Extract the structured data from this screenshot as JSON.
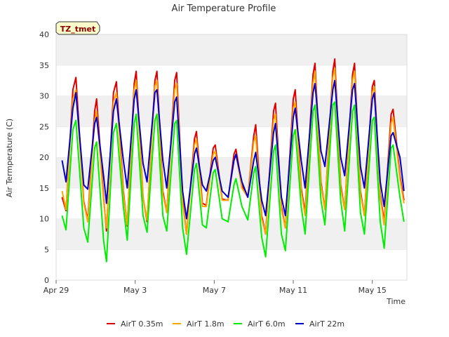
{
  "chart_data": {
    "type": "line",
    "title": "Air Temperature Profile",
    "xlabel": "Time",
    "ylabel": "Air Termperature (C)",
    "badge": "TZ_tmet",
    "ylim": [
      0,
      40
    ],
    "yticks": [
      0,
      5,
      10,
      15,
      20,
      25,
      30,
      35,
      40
    ],
    "xlim": [
      "Apr 29",
      "May 17 06:00"
    ],
    "xticks": [
      {
        "label": "Apr 29",
        "x": 0
      },
      {
        "label": "May 3",
        "x": 4
      },
      {
        "label": "May 7",
        "x": 8
      },
      {
        "label": "May 11",
        "x": 12
      },
      {
        "label": "May 15",
        "x": 16
      }
    ],
    "grid": "horizontal bands",
    "legend_position": "bottom",
    "x_units": "days since Apr 29 00:00",
    "series": [
      {
        "name": "AirT 0.35m",
        "color": "#dd0000",
        "points": [
          [
            0.3,
            13.5
          ],
          [
            0.5,
            11.3
          ],
          [
            0.85,
            31
          ],
          [
            1.0,
            33.0
          ],
          [
            1.4,
            12.8
          ],
          [
            1.6,
            9.8
          ],
          [
            1.95,
            27.5
          ],
          [
            2.05,
            29.5
          ],
          [
            2.4,
            13.5
          ],
          [
            2.55,
            8.0
          ],
          [
            2.9,
            30.5
          ],
          [
            3.05,
            32.3
          ],
          [
            3.4,
            14.5
          ],
          [
            3.6,
            8.8
          ],
          [
            3.95,
            32.0
          ],
          [
            4.05,
            34.0
          ],
          [
            4.4,
            13.5
          ],
          [
            4.6,
            9.5
          ],
          [
            5.0,
            32.5
          ],
          [
            5.1,
            34.0
          ],
          [
            5.4,
            14.5
          ],
          [
            5.6,
            11.0
          ],
          [
            6.0,
            32.5
          ],
          [
            6.1,
            33.8
          ],
          [
            6.4,
            13.0
          ],
          [
            6.6,
            7.5
          ],
          [
            7.0,
            23.0
          ],
          [
            7.1,
            24.2
          ],
          [
            7.4,
            12.5
          ],
          [
            7.6,
            12.2
          ],
          [
            7.95,
            21.5
          ],
          [
            8.05,
            22.0
          ],
          [
            8.4,
            13.2
          ],
          [
            8.7,
            13.0
          ],
          [
            9.0,
            20.5
          ],
          [
            9.1,
            21.3
          ],
          [
            9.4,
            15.5
          ],
          [
            9.7,
            13.5
          ],
          [
            10.0,
            23.5
          ],
          [
            10.1,
            25.3
          ],
          [
            10.4,
            10.5
          ],
          [
            10.6,
            7.5
          ],
          [
            11.0,
            27.5
          ],
          [
            11.1,
            28.8
          ],
          [
            11.4,
            12.0
          ],
          [
            11.6,
            8.5
          ],
          [
            12.0,
            29.5
          ],
          [
            12.1,
            31.0
          ],
          [
            12.4,
            15.0
          ],
          [
            12.6,
            11.0
          ],
          [
            13.0,
            33.5
          ],
          [
            13.1,
            35.3
          ],
          [
            13.4,
            16.0
          ],
          [
            13.6,
            11.5
          ],
          [
            14.0,
            34.0
          ],
          [
            14.1,
            36.0
          ],
          [
            14.4,
            15.5
          ],
          [
            14.6,
            11.5
          ],
          [
            15.0,
            33.5
          ],
          [
            15.1,
            35.3
          ],
          [
            15.4,
            14.5
          ],
          [
            15.6,
            10.5
          ],
          [
            16.0,
            31.5
          ],
          [
            16.1,
            32.5
          ],
          [
            16.4,
            14.0
          ],
          [
            16.6,
            9.5
          ],
          [
            16.95,
            27.0
          ],
          [
            17.05,
            27.8
          ],
          [
            17.4,
            17.0
          ],
          [
            17.6,
            13.0
          ]
        ]
      },
      {
        "name": "AirT 1.8m",
        "color": "#ffa500",
        "points": [
          [
            0.3,
            14.5
          ],
          [
            0.5,
            11.5
          ],
          [
            0.85,
            29.5
          ],
          [
            1.0,
            31.0
          ],
          [
            1.4,
            12.5
          ],
          [
            1.6,
            9.5
          ],
          [
            1.95,
            26.0
          ],
          [
            2.05,
            27.5
          ],
          [
            2.4,
            13.0
          ],
          [
            2.55,
            8.5
          ],
          [
            2.9,
            29.0
          ],
          [
            3.05,
            30.5
          ],
          [
            3.4,
            14.0
          ],
          [
            3.6,
            9.0
          ],
          [
            3.95,
            31.0
          ],
          [
            4.05,
            32.5
          ],
          [
            4.4,
            13.5
          ],
          [
            4.6,
            9.8
          ],
          [
            5.0,
            31.5
          ],
          [
            5.1,
            32.5
          ],
          [
            5.4,
            14.0
          ],
          [
            5.6,
            11.0
          ],
          [
            6.0,
            31.0
          ],
          [
            6.1,
            32.0
          ],
          [
            6.4,
            12.5
          ],
          [
            6.6,
            7.5
          ],
          [
            7.0,
            22.0
          ],
          [
            7.1,
            23.0
          ],
          [
            7.4,
            12.0
          ],
          [
            7.6,
            12.0
          ],
          [
            7.95,
            20.5
          ],
          [
            8.05,
            21.0
          ],
          [
            8.4,
            13.0
          ],
          [
            8.7,
            13.0
          ],
          [
            9.0,
            19.5
          ],
          [
            9.1,
            20.5
          ],
          [
            9.4,
            15.0
          ],
          [
            9.7,
            13.5
          ],
          [
            10.0,
            22.5
          ],
          [
            10.1,
            23.5
          ],
          [
            10.4,
            10.0
          ],
          [
            10.6,
            7.5
          ],
          [
            11.0,
            26.0
          ],
          [
            11.1,
            27.0
          ],
          [
            11.4,
            11.5
          ],
          [
            11.6,
            8.5
          ],
          [
            12.0,
            28.0
          ],
          [
            12.1,
            29.0
          ],
          [
            12.4,
            14.5
          ],
          [
            12.6,
            10.5
          ],
          [
            13.0,
            32.0
          ],
          [
            13.1,
            34.0
          ],
          [
            13.4,
            15.5
          ],
          [
            13.6,
            11.5
          ],
          [
            14.0,
            33.0
          ],
          [
            14.1,
            34.5
          ],
          [
            14.4,
            15.0
          ],
          [
            14.6,
            11.5
          ],
          [
            15.0,
            32.5
          ],
          [
            15.1,
            34.0
          ],
          [
            15.4,
            14.0
          ],
          [
            15.6,
            10.5
          ],
          [
            16.0,
            30.5
          ],
          [
            16.1,
            31.5
          ],
          [
            16.4,
            13.5
          ],
          [
            16.6,
            9.0
          ],
          [
            16.95,
            25.5
          ],
          [
            17.05,
            26.5
          ],
          [
            17.4,
            16.5
          ],
          [
            17.6,
            12.5
          ]
        ]
      },
      {
        "name": "AirT 6.0m",
        "color": "#00ee00",
        "points": [
          [
            0.3,
            10.5
          ],
          [
            0.5,
            8.2
          ],
          [
            0.85,
            24.5
          ],
          [
            1.0,
            26.0
          ],
          [
            1.4,
            8.5
          ],
          [
            1.6,
            6.2
          ],
          [
            1.95,
            21.5
          ],
          [
            2.05,
            22.5
          ],
          [
            2.4,
            6.5
          ],
          [
            2.55,
            3.0
          ],
          [
            2.9,
            24.0
          ],
          [
            3.05,
            25.5
          ],
          [
            3.4,
            12.0
          ],
          [
            3.6,
            6.5
          ],
          [
            3.95,
            25.5
          ],
          [
            4.05,
            27.0
          ],
          [
            4.4,
            10.5
          ],
          [
            4.6,
            7.8
          ],
          [
            5.0,
            26.0
          ],
          [
            5.1,
            27.0
          ],
          [
            5.4,
            10.5
          ],
          [
            5.6,
            8.0
          ],
          [
            6.0,
            25.5
          ],
          [
            6.1,
            26.0
          ],
          [
            6.4,
            8.5
          ],
          [
            6.6,
            4.2
          ],
          [
            7.0,
            18.0
          ],
          [
            7.1,
            19.0
          ],
          [
            7.4,
            9.0
          ],
          [
            7.6,
            8.5
          ],
          [
            7.95,
            17.5
          ],
          [
            8.05,
            18.0
          ],
          [
            8.4,
            10.0
          ],
          [
            8.7,
            9.5
          ],
          [
            9.0,
            15.5
          ],
          [
            9.1,
            16.5
          ],
          [
            9.4,
            12.0
          ],
          [
            9.7,
            9.8
          ],
          [
            10.0,
            17.5
          ],
          [
            10.1,
            18.5
          ],
          [
            10.4,
            7.0
          ],
          [
            10.6,
            3.8
          ],
          [
            11.0,
            21.0
          ],
          [
            11.1,
            22.0
          ],
          [
            11.4,
            7.5
          ],
          [
            11.6,
            4.8
          ],
          [
            12.0,
            23.5
          ],
          [
            12.1,
            24.5
          ],
          [
            12.4,
            12.0
          ],
          [
            12.6,
            7.5
          ],
          [
            13.0,
            27.5
          ],
          [
            13.1,
            28.5
          ],
          [
            13.4,
            13.0
          ],
          [
            13.6,
            9.0
          ],
          [
            14.0,
            28.5
          ],
          [
            14.1,
            29.0
          ],
          [
            14.4,
            13.0
          ],
          [
            14.6,
            8.0
          ],
          [
            15.0,
            27.5
          ],
          [
            15.1,
            28.5
          ],
          [
            15.4,
            11.0
          ],
          [
            15.6,
            7.5
          ],
          [
            16.0,
            26.0
          ],
          [
            16.1,
            26.5
          ],
          [
            16.4,
            9.5
          ],
          [
            16.6,
            5.2
          ],
          [
            16.95,
            21.5
          ],
          [
            17.05,
            22.0
          ],
          [
            17.4,
            13.5
          ],
          [
            17.6,
            9.5
          ]
        ]
      },
      {
        "name": "AirT 22m",
        "color": "#0000cc",
        "points": [
          [
            0.3,
            19.5
          ],
          [
            0.5,
            16.0
          ],
          [
            0.85,
            28.0
          ],
          [
            1.0,
            30.5
          ],
          [
            1.4,
            15.5
          ],
          [
            1.6,
            14.8
          ],
          [
            1.95,
            25.5
          ],
          [
            2.05,
            26.5
          ],
          [
            2.4,
            17.0
          ],
          [
            2.55,
            12.5
          ],
          [
            2.9,
            27.5
          ],
          [
            3.05,
            29.5
          ],
          [
            3.4,
            19.5
          ],
          [
            3.6,
            15.0
          ],
          [
            3.95,
            29.5
          ],
          [
            4.05,
            31.0
          ],
          [
            4.4,
            19.0
          ],
          [
            4.6,
            16.0
          ],
          [
            5.0,
            30.5
          ],
          [
            5.1,
            31.0
          ],
          [
            5.4,
            19.5
          ],
          [
            5.6,
            15.0
          ],
          [
            6.0,
            29.0
          ],
          [
            6.1,
            29.8
          ],
          [
            6.4,
            14.5
          ],
          [
            6.6,
            10.0
          ],
          [
            7.0,
            20.5
          ],
          [
            7.1,
            21.5
          ],
          [
            7.4,
            15.5
          ],
          [
            7.6,
            14.5
          ],
          [
            7.95,
            19.5
          ],
          [
            8.05,
            20.0
          ],
          [
            8.4,
            14.5
          ],
          [
            8.7,
            13.5
          ],
          [
            9.0,
            19.5
          ],
          [
            9.1,
            20.5
          ],
          [
            9.4,
            16.0
          ],
          [
            9.7,
            13.5
          ],
          [
            10.0,
            19.5
          ],
          [
            10.1,
            20.8
          ],
          [
            10.4,
            13.0
          ],
          [
            10.6,
            10.5
          ],
          [
            11.0,
            24.0
          ],
          [
            11.1,
            25.5
          ],
          [
            11.4,
            13.5
          ],
          [
            11.6,
            10.5
          ],
          [
            12.0,
            26.5
          ],
          [
            12.1,
            28.0
          ],
          [
            12.4,
            19.5
          ],
          [
            12.6,
            15.0
          ],
          [
            13.0,
            30.5
          ],
          [
            13.1,
            32.0
          ],
          [
            13.4,
            21.0
          ],
          [
            13.6,
            18.5
          ],
          [
            14.0,
            31.0
          ],
          [
            14.1,
            32.5
          ],
          [
            14.4,
            20.0
          ],
          [
            14.6,
            17.0
          ],
          [
            15.0,
            31.0
          ],
          [
            15.1,
            32.0
          ],
          [
            15.4,
            18.5
          ],
          [
            15.6,
            15.0
          ],
          [
            16.0,
            29.5
          ],
          [
            16.1,
            30.5
          ],
          [
            16.4,
            16.0
          ],
          [
            16.6,
            12.0
          ],
          [
            16.95,
            23.5
          ],
          [
            17.05,
            24.0
          ],
          [
            17.4,
            20.0
          ],
          [
            17.6,
            14.5
          ]
        ]
      }
    ]
  }
}
